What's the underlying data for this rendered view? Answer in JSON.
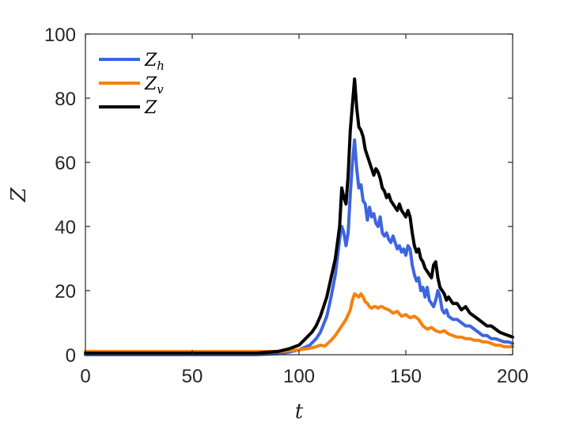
{
  "chart_data": {
    "type": "line",
    "title": "",
    "xlabel": "t",
    "ylabel": "Z",
    "xlim": [
      0,
      200
    ],
    "ylim": [
      0,
      100
    ],
    "xticks": [
      0,
      50,
      100,
      150,
      200
    ],
    "yticks": [
      0,
      20,
      40,
      60,
      80,
      100
    ],
    "grid": false,
    "legend_position": "top-left",
    "series": [
      {
        "name": "Z_h",
        "label_main": "Z",
        "label_sub": "h",
        "color": "#3e64e0",
        "x": [
          0,
          80,
          90,
          95,
          100,
          105,
          108,
          110,
          113,
          115,
          117,
          119,
          120,
          121,
          122,
          123,
          124,
          125,
          126,
          127,
          128,
          129,
          130,
          131,
          132,
          133,
          134,
          135,
          136,
          137,
          138,
          139,
          140,
          141,
          142,
          143,
          144,
          145,
          146,
          147,
          148,
          149,
          150,
          151,
          152,
          153,
          154,
          155,
          156,
          157,
          158,
          159,
          160,
          161,
          162,
          163,
          164,
          165,
          166,
          167,
          168,
          169,
          170,
          172,
          174,
          176,
          178,
          180,
          182,
          184,
          186,
          188,
          190,
          192,
          194,
          196,
          198,
          200
        ],
        "values": [
          0,
          0,
          0.3,
          0.8,
          1.5,
          3,
          5,
          7,
          12,
          18,
          25,
          36,
          40,
          38,
          34,
          38,
          50,
          60,
          67,
          58,
          52,
          53,
          48,
          47,
          42,
          46,
          43,
          44,
          41,
          40,
          43,
          38,
          37,
          38,
          36,
          35,
          37,
          35,
          33,
          34,
          32,
          33,
          31,
          34,
          33,
          28,
          25,
          23,
          24,
          20,
          21,
          18,
          21,
          17,
          16,
          15,
          17,
          20,
          18,
          14,
          13,
          14,
          12,
          11,
          11,
          10,
          9,
          9,
          8,
          7,
          6,
          6,
          5,
          5,
          4.5,
          4,
          4,
          3.5
        ]
      },
      {
        "name": "Z_v",
        "label_main": "Z",
        "label_sub": "v",
        "color": "#f5820f",
        "x": [
          0,
          90,
          95,
          100,
          105,
          108,
          110,
          112,
          115,
          117,
          119,
          120,
          122,
          124,
          125,
          126,
          127,
          128,
          129,
          130,
          131,
          132,
          133,
          134,
          135,
          136,
          137,
          138,
          139,
          140,
          142,
          144,
          146,
          148,
          150,
          152,
          154,
          156,
          158,
          160,
          162,
          164,
          166,
          168,
          170,
          172,
          174,
          176,
          178,
          180,
          182,
          184,
          186,
          188,
          190,
          192,
          194,
          196,
          198,
          200
        ],
        "values": [
          1,
          1,
          1.2,
          1.5,
          2,
          2.5,
          3,
          2.7,
          4.5,
          6,
          8,
          9,
          11,
          14,
          17,
          19,
          18.5,
          18,
          19,
          18,
          16.5,
          16,
          15,
          14.5,
          15,
          15,
          14.5,
          15,
          15,
          14.5,
          14,
          13,
          13.5,
          12,
          12.5,
          11.5,
          12,
          11,
          9,
          8,
          8.5,
          7.5,
          7,
          7.5,
          6.5,
          6,
          5.5,
          5.5,
          5,
          5,
          4.5,
          4.5,
          4,
          4,
          3.5,
          3,
          3,
          2.5,
          2.5,
          2.5
        ]
      },
      {
        "name": "Z",
        "label_main": "Z",
        "label_sub": "",
        "color": "#000000",
        "x": [
          0,
          80,
          90,
          95,
          100,
          103,
          106,
          108,
          110,
          113,
          115,
          117,
          119,
          120,
          121,
          122,
          123,
          124,
          125,
          126,
          127,
          128,
          129,
          130,
          131,
          132,
          133,
          134,
          135,
          136,
          137,
          138,
          139,
          140,
          141,
          142,
          143,
          144,
          145,
          146,
          147,
          148,
          149,
          150,
          151,
          152,
          153,
          154,
          155,
          156,
          157,
          158,
          159,
          160,
          161,
          162,
          163,
          164,
          165,
          166,
          167,
          168,
          169,
          170,
          172,
          174,
          176,
          178,
          180,
          182,
          184,
          186,
          188,
          190,
          192,
          194,
          196,
          198,
          200
        ],
        "values": [
          0.5,
          0.5,
          1,
          1.8,
          3,
          5,
          7,
          9,
          12,
          18,
          24,
          30,
          40,
          52,
          49,
          47,
          56,
          70,
          78,
          86,
          77,
          71,
          70,
          68,
          64,
          62,
          60,
          58,
          56,
          58,
          57,
          55,
          52,
          51,
          49,
          50,
          48,
          47,
          46,
          45,
          47,
          45,
          44,
          43,
          45,
          43,
          38,
          34,
          32,
          33,
          30,
          29,
          27,
          26,
          25,
          24,
          28,
          29,
          24,
          21,
          20,
          19,
          17,
          18,
          16,
          16,
          14,
          15,
          13,
          12,
          11,
          10,
          9,
          9,
          8,
          7,
          6.5,
          6,
          5.5
        ]
      }
    ]
  }
}
